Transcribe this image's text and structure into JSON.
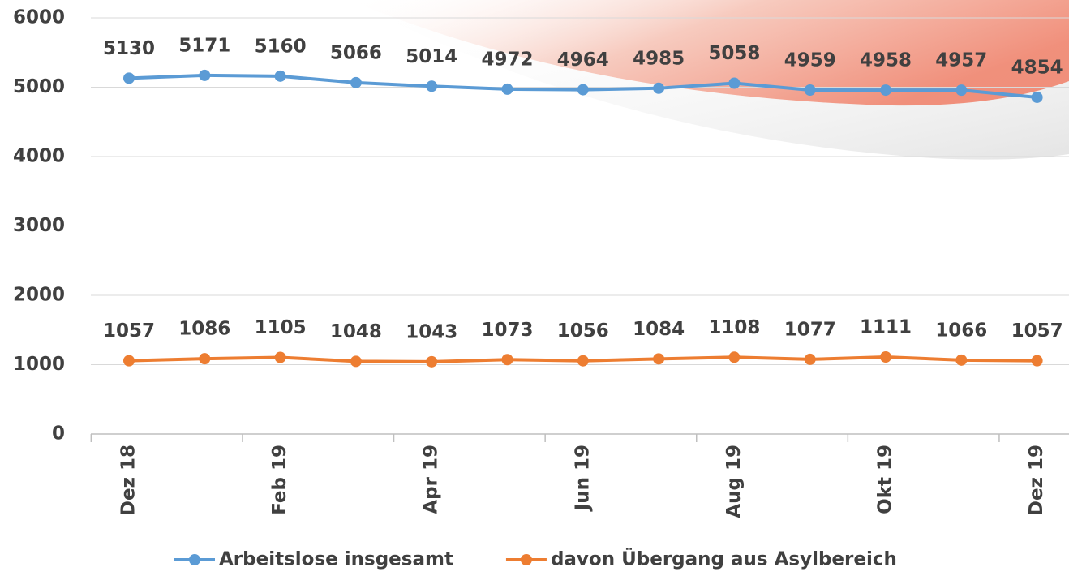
{
  "chart_data": {
    "type": "line",
    "categories": [
      "Dez 18",
      null,
      "Feb 19",
      null,
      "Apr 19",
      null,
      "Jun 19",
      null,
      "Aug 19",
      null,
      "Okt 19",
      null,
      "Dez 19"
    ],
    "series": [
      {
        "name": "Arbeitslose insgesamt",
        "color": "#5b9bd5",
        "values": [
          5130,
          5171,
          5160,
          5066,
          5014,
          4972,
          4964,
          4985,
          5058,
          4959,
          4958,
          4957,
          4854
        ]
      },
      {
        "name": "davon Übergang aus Asylbereich",
        "color": "#ed7d31",
        "values": [
          1057,
          1086,
          1105,
          1048,
          1043,
          1073,
          1056,
          1084,
          1108,
          1077,
          1111,
          1066,
          1057
        ]
      }
    ],
    "ylim": [
      0,
      6000
    ],
    "yticks": [
      0,
      1000,
      2000,
      3000,
      4000,
      5000,
      6000
    ],
    "grid": true,
    "legend": "bottom"
  }
}
